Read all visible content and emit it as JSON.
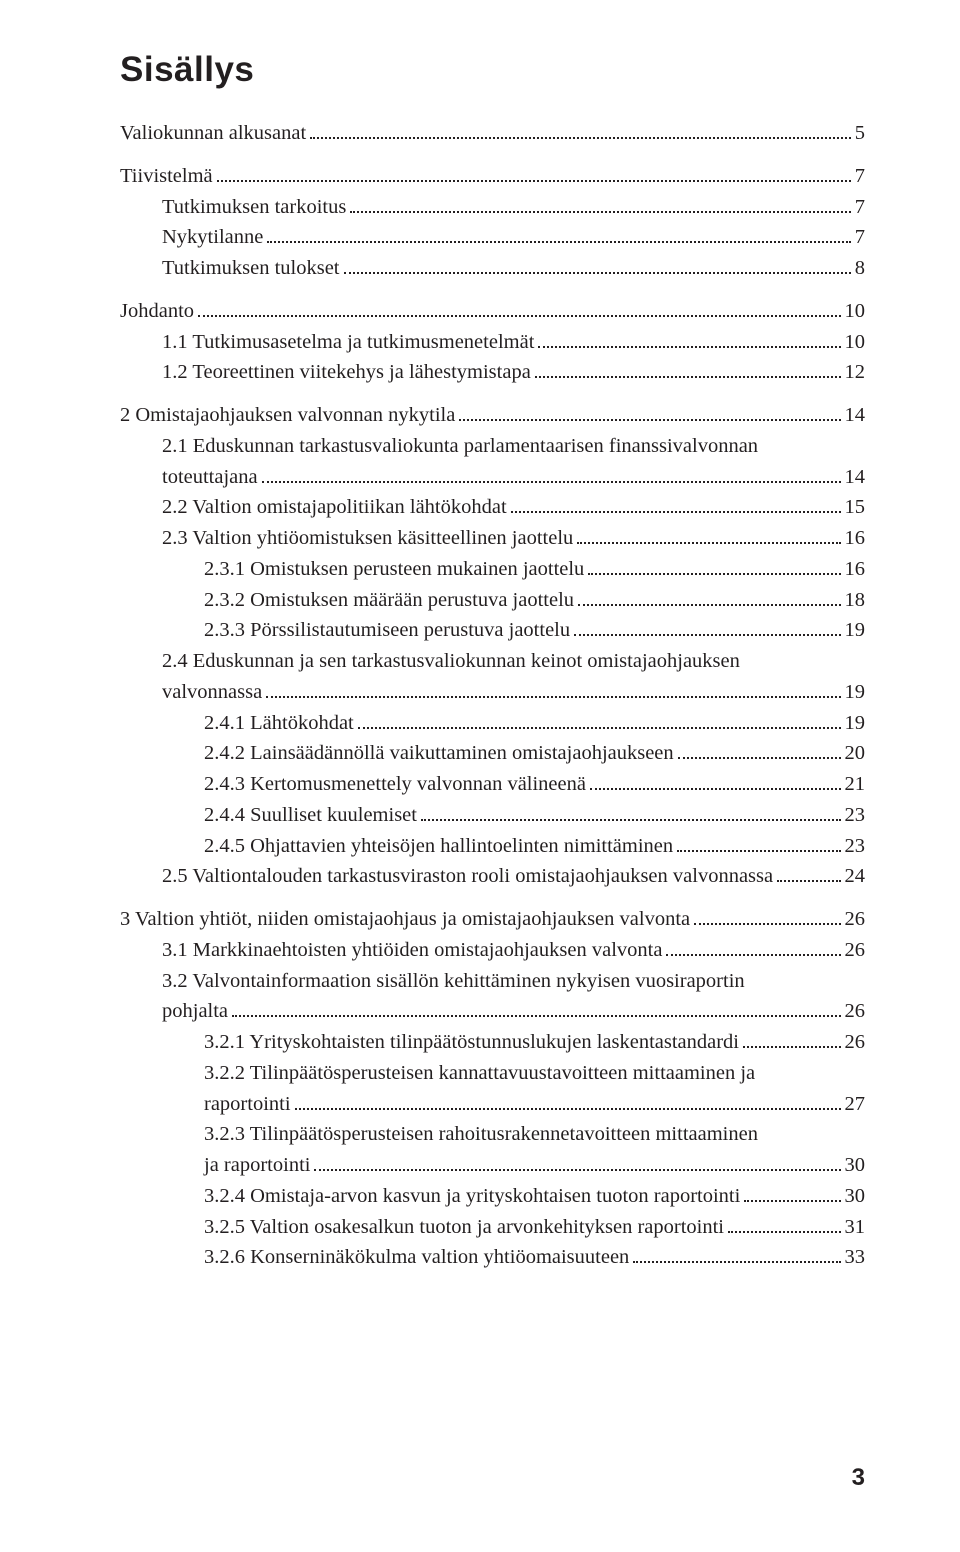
{
  "title": "Sisällys",
  "page_number": "3",
  "sections": [
    {
      "items": [
        {
          "label": "Valiokunnan alkusanat",
          "page": "5",
          "indent": 0
        }
      ]
    },
    {
      "items": [
        {
          "label": "Tiivistelmä",
          "page": "7",
          "indent": 0
        },
        {
          "label": "Tutkimuksen tarkoitus",
          "page": "7",
          "indent": 1
        },
        {
          "label": "Nykytilanne",
          "page": "7",
          "indent": 1
        },
        {
          "label": "Tutkimuksen tulokset",
          "page": "8",
          "indent": 1
        }
      ]
    },
    {
      "items": [
        {
          "label": "Johdanto",
          "page": "10",
          "indent": 0
        },
        {
          "label": "1.1 Tutkimusasetelma ja tutkimusmenetelmät",
          "page": "10",
          "indent": 1
        },
        {
          "label": "1.2 Teoreettinen viitekehys ja lähestymistapa",
          "page": "12",
          "indent": 1
        }
      ]
    },
    {
      "items": [
        {
          "label": "2 Omistajaohjauksen valvonnan nykytila",
          "page": "14",
          "indent": 0
        },
        {
          "label": "2.1 Eduskunnan tarkastusvaliokunta parlamentaarisen finanssivalvonnan",
          "indent": 1,
          "nopage": true
        },
        {
          "label": "toteuttajana",
          "page": "14",
          "indent": 1
        },
        {
          "label": "2.2 Valtion omistajapolitiikan lähtökohdat",
          "page": "15",
          "indent": 1
        },
        {
          "label": "2.3 Valtion yhtiöomistuksen käsitteellinen jaottelu",
          "page": "16",
          "indent": 1
        },
        {
          "label": "2.3.1 Omistuksen perusteen mukainen jaottelu",
          "page": "16",
          "indent": 2
        },
        {
          "label": "2.3.2 Omistuksen määrään perustuva jaottelu",
          "page": "18",
          "indent": 2
        },
        {
          "label": "2.3.3 Pörssilistautumiseen perustuva jaottelu",
          "page": "19",
          "indent": 2
        },
        {
          "label": "2.4 Eduskunnan ja sen tarkastusvaliokunnan keinot omistajaohjauksen",
          "indent": 1,
          "nopage": true
        },
        {
          "label": "valvonnassa",
          "page": "19",
          "indent": 1
        },
        {
          "label": "2.4.1 Lähtökohdat",
          "page": "19",
          "indent": 2
        },
        {
          "label": "2.4.2 Lainsäädännöllä vaikuttaminen omistajaohjaukseen",
          "page": "20",
          "indent": 2
        },
        {
          "label": "2.4.3 Kertomusmenettely valvonnan välineenä",
          "page": "21",
          "indent": 2
        },
        {
          "label": "2.4.4 Suulliset kuulemiset",
          "page": "23",
          "indent": 2
        },
        {
          "label": "2.4.5 Ohjattavien yhteisöjen hallintoelinten nimittäminen",
          "page": "23",
          "indent": 2
        },
        {
          "label": "2.5 Valtiontalouden tarkastusviraston rooli omistajaohjauksen valvonnassa",
          "page": "24",
          "indent": 1
        }
      ]
    },
    {
      "items": [
        {
          "label": "3 Valtion yhtiöt, niiden omistajaohjaus ja omistajaohjauksen valvonta",
          "page": "26",
          "indent": 0
        },
        {
          "label": "3.1 Markkinaehtoisten yhtiöiden omistajaohjauksen valvonta",
          "page": "26",
          "indent": 1
        },
        {
          "label": "3.2 Valvontainformaation sisällön kehittäminen nykyisen vuosiraportin",
          "indent": 1,
          "nopage": true
        },
        {
          "label": "pohjalta",
          "page": "26",
          "indent": 1
        },
        {
          "label": "3.2.1 Yrityskohtaisten tilinpäätöstunnuslukujen laskentastandardi",
          "page": "26",
          "indent": 2
        },
        {
          "label": "3.2.2 Tilinpäätösperusteisen kannattavuustavoitteen mittaaminen ja",
          "indent": 2,
          "nopage": true
        },
        {
          "label": "raportointi",
          "page": "27",
          "indent": 2
        },
        {
          "label": "3.2.3 Tilinpäätösperusteisen rahoitusrakennetavoitteen mittaaminen",
          "indent": 2,
          "nopage": true
        },
        {
          "label": "ja raportointi",
          "page": "30",
          "indent": 2
        },
        {
          "label": "3.2.4 Omistaja-arvon kasvun ja yrityskohtaisen tuoton raportointi",
          "page": "30",
          "indent": 2
        },
        {
          "label": "3.2.5 Valtion osakesalkun tuoton ja arvonkehityksen raportointi",
          "page": "31",
          "indent": 2
        },
        {
          "label": "3.2.6 Konserninäkökulma valtion yhtiöomaisuuteen",
          "page": "33",
          "indent": 2
        }
      ]
    }
  ]
}
